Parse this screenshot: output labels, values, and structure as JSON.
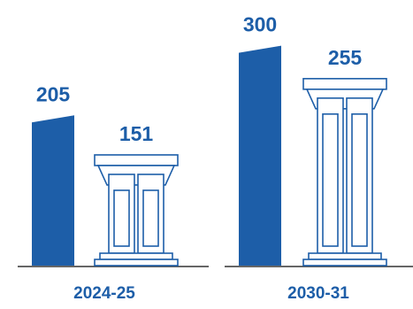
{
  "chart_data": {
    "type": "bar",
    "categories": [
      "2024-25",
      "2030-31"
    ],
    "series": [
      {
        "color": "#1d5ea8",
        "values": [
          205,
          300
        ]
      },
      {
        "color": "#1d5ea8",
        "values": [
          151,
          255
        ]
      }
    ],
    "ylim": [
      0,
      320
    ]
  }
}
